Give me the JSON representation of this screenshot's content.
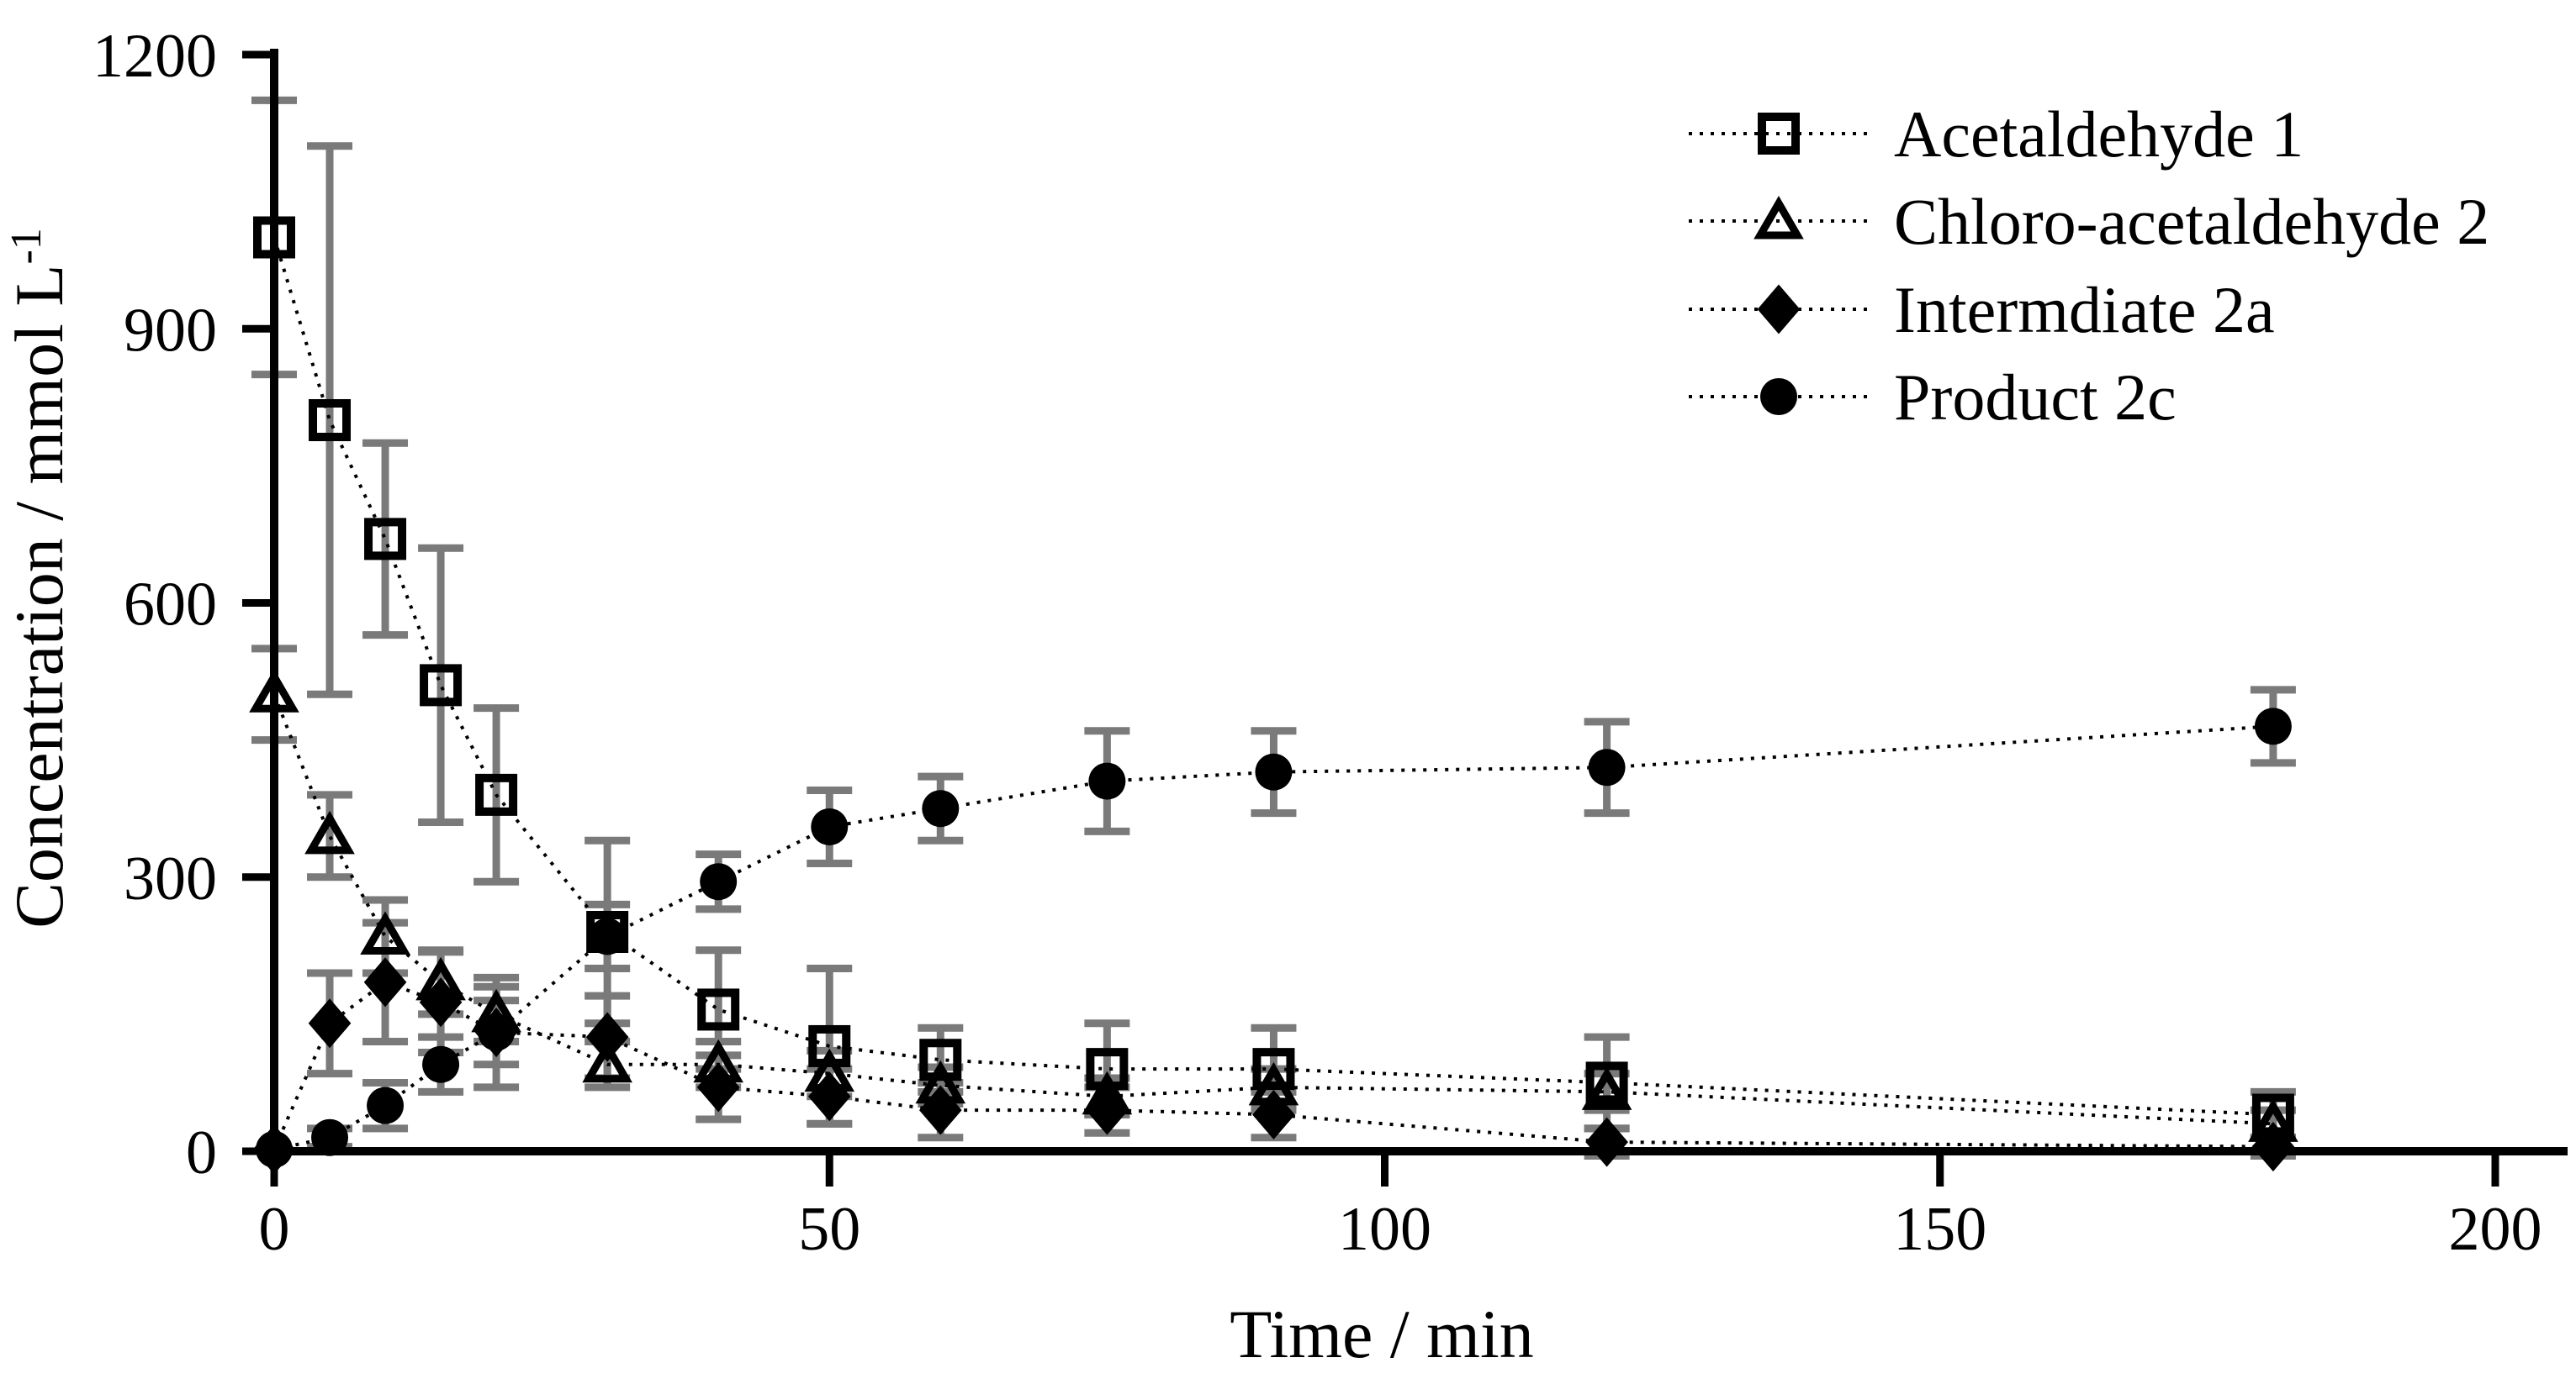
{
  "chart_data": {
    "type": "scatter",
    "title": "",
    "xlabel": "Time / min",
    "ylabel": "Concentration / mmol L⁻¹",
    "ylabel_main": "Concentration / mmol L",
    "ylabel_sup": "-1",
    "xlim": [
      0,
      200
    ],
    "ylim": [
      0,
      1200
    ],
    "x_ticks": [
      0,
      50,
      100,
      150,
      200
    ],
    "y_ticks": [
      0,
      300,
      600,
      900,
      1200
    ],
    "grid": false,
    "legend_position": "top-right",
    "line_style": "dotted",
    "x": [
      0,
      5,
      10,
      15,
      20,
      30,
      40,
      50,
      60,
      75,
      90,
      120,
      180
    ],
    "series": [
      {
        "name": "Acetaldehyde 1",
        "marker": "square",
        "fill": "open",
        "values": [
          1000,
          800,
          670,
          510,
          390,
          240,
          155,
          115,
          100,
          90,
          90,
          75,
          40
        ],
        "yerr": [
          150,
          300,
          105,
          150,
          95,
          100,
          65,
          85,
          35,
          50,
          45,
          50,
          25
        ]
      },
      {
        "name": "Chloro-acetaldehyde 2",
        "marker": "triangle",
        "fill": "open",
        "values": [
          500,
          345,
          235,
          185,
          150,
          95,
          95,
          85,
          72,
          60,
          70,
          65,
          30
        ],
        "yerr": [
          50,
          45,
          40,
          35,
          30,
          25,
          25,
          25,
          20,
          20,
          20,
          20,
          15
        ]
      },
      {
        "name": "Intermdiate 2a",
        "marker": "diamond",
        "fill": "filled",
        "values": [
          2,
          140,
          185,
          163,
          130,
          125,
          70,
          60,
          45,
          45,
          40,
          10,
          5
        ],
        "yerr": [
          0,
          55,
          65,
          55,
          60,
          45,
          35,
          30,
          30,
          25,
          25,
          15,
          10
        ]
      },
      {
        "name": "Product 2c",
        "marker": "circle",
        "fill": "filled",
        "values": [
          2,
          15,
          50,
          95,
          130,
          235,
          295,
          355,
          375,
          405,
          415,
          420,
          465
        ],
        "yerr": [
          0,
          10,
          25,
          30,
          35,
          35,
          30,
          40,
          35,
          55,
          45,
          50,
          40
        ]
      }
    ],
    "colors": {
      "marker": "#000000",
      "line": "#000000",
      "error_bar": "#7a7a7a",
      "background": "#ffffff"
    }
  }
}
